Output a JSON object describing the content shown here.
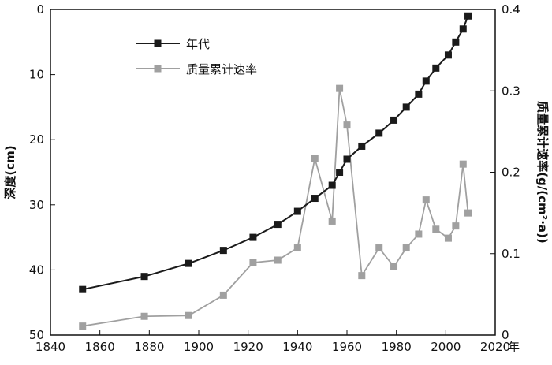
{
  "chart_data": {
    "type": "line",
    "title": "",
    "xlabel": "年",
    "ylabel_left": "深度(cm)",
    "ylabel_right": "质量累计速率(g/(cm²·a))",
    "xlim": [
      1840,
      2020
    ],
    "ylim_left": [
      0,
      50
    ],
    "ylim_left_inverted": true,
    "ylim_right": [
      0,
      0.4
    ],
    "x_ticks": [
      1840,
      1860,
      1880,
      1900,
      1920,
      1940,
      1960,
      1980,
      2000,
      2020
    ],
    "y_ticks_left": [
      0,
      10,
      20,
      30,
      40,
      50
    ],
    "y_ticks_right": [
      0,
      0.1,
      0.2,
      0.3,
      0.4
    ],
    "y_tick_labels_right": [
      "0",
      "0.1",
      "0.2",
      "0.3",
      "0.4"
    ],
    "legend_position": "top-left",
    "x": [
      1853,
      1878,
      1896,
      1910,
      1922,
      1932,
      1940,
      1947,
      1954,
      1957,
      1960,
      1966,
      1973,
      1979,
      1984,
      1989,
      1992,
      1996,
      2001,
      2004,
      2007,
      2009
    ],
    "series": [
      {
        "name": "年代",
        "axis": "left",
        "color": "#1a1a1a",
        "values": [
          43,
          41,
          39,
          37,
          35,
          33,
          31,
          29,
          27,
          25,
          23,
          21,
          19,
          17,
          15,
          13,
          11,
          9,
          7,
          5,
          3,
          1
        ]
      },
      {
        "name": "质量累计速率",
        "axis": "right",
        "color": "#a0a0a0",
        "values": [
          0.011,
          0.023,
          0.024,
          0.049,
          0.089,
          0.092,
          0.107,
          0.217,
          0.14,
          0.303,
          0.258,
          0.073,
          0.107,
          0.084,
          0.107,
          0.124,
          0.166,
          0.13,
          0.119,
          0.134,
          0.21,
          0.15
        ]
      }
    ]
  }
}
